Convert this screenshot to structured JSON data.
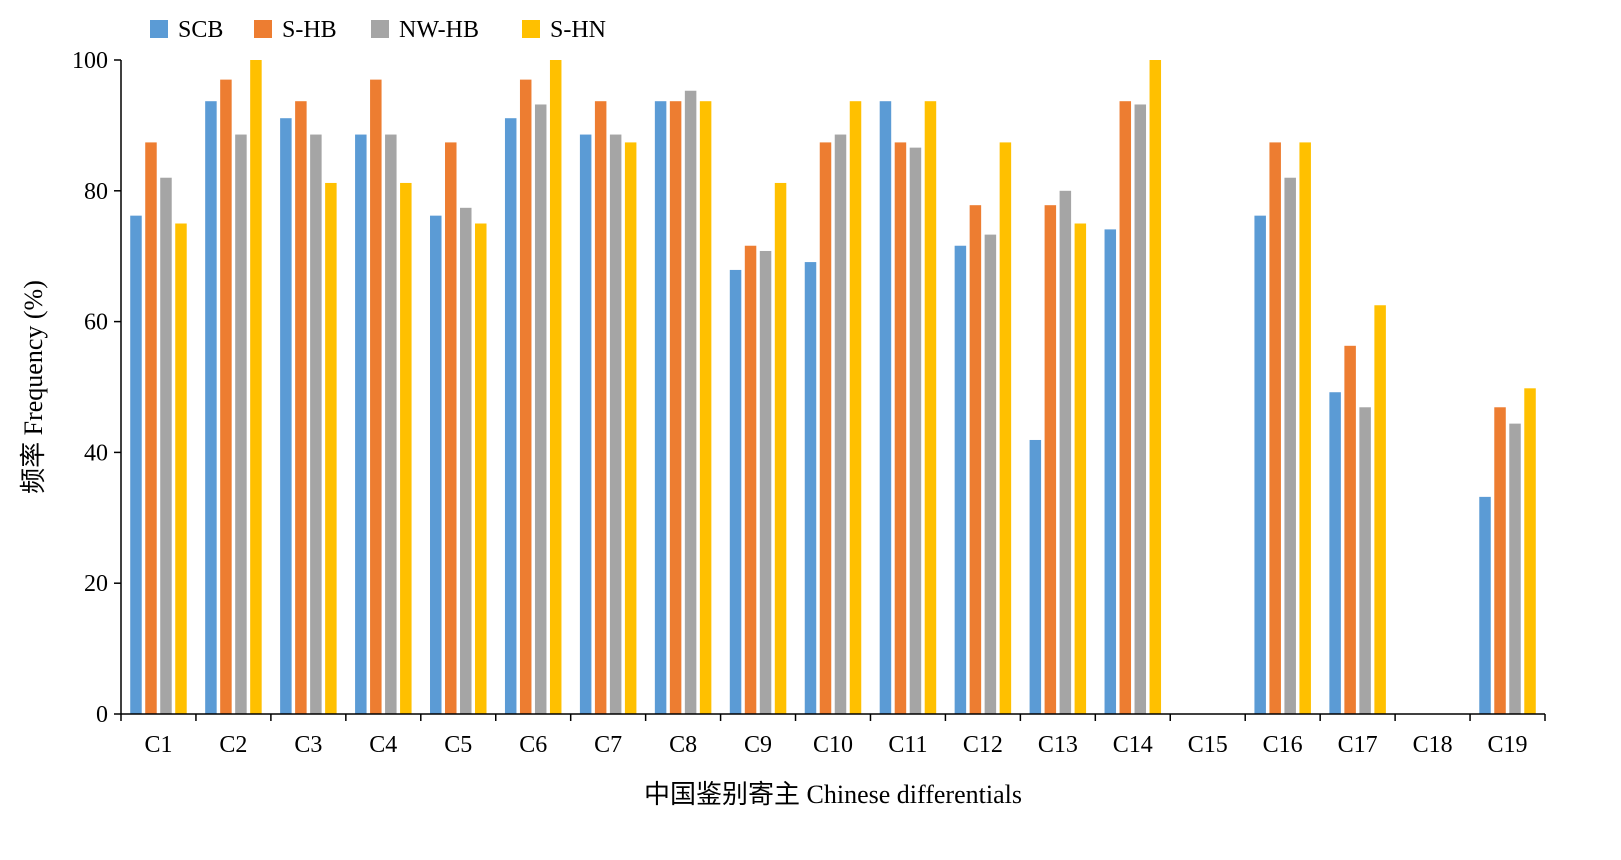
{
  "chart_data": {
    "type": "bar",
    "title": "",
    "xlabel": "中国鉴别寄主 Chinese differentials",
    "ylabel": "频率 Frequency (%)",
    "ylim": [
      0,
      100
    ],
    "yticks": [
      "0",
      "20",
      "40",
      "60",
      "80",
      "100"
    ],
    "grid": false,
    "legend_position": "top-left",
    "categories": [
      "C1",
      "C2",
      "C3",
      "C4",
      "C5",
      "C6",
      "C7",
      "C8",
      "C9",
      "C10",
      "C11",
      "C12",
      "C13",
      "C14",
      "C15",
      "C16",
      "C17",
      "C18",
      "C19"
    ],
    "series": [
      {
        "name": "SCB",
        "color": "#5B9BD5",
        "values": [
          76.2,
          93.7,
          91.1,
          88.6,
          76.2,
          91.1,
          88.6,
          93.7,
          67.9,
          69.1,
          93.7,
          71.6,
          41.9,
          74.1,
          0,
          76.2,
          49.2,
          0,
          33.2
        ]
      },
      {
        "name": "S-HB",
        "color": "#ED7D31",
        "values": [
          87.4,
          97.0,
          93.7,
          97.0,
          87.4,
          97.0,
          93.7,
          93.7,
          71.6,
          87.4,
          87.4,
          77.8,
          77.8,
          93.7,
          0,
          87.4,
          56.3,
          0,
          46.9
        ]
      },
      {
        "name": "NW-HB",
        "color": "#A5A5A5",
        "values": [
          82.0,
          88.6,
          88.6,
          88.6,
          77.4,
          93.2,
          88.6,
          95.3,
          70.8,
          88.6,
          86.6,
          73.3,
          80.0,
          93.2,
          0,
          82.0,
          46.9,
          0,
          44.4
        ]
      },
      {
        "name": "S-HN",
        "color": "#FFC000",
        "values": [
          75.0,
          100,
          81.2,
          81.2,
          75.0,
          100,
          87.4,
          93.7,
          81.2,
          93.7,
          93.7,
          87.4,
          75.0,
          100,
          0,
          87.4,
          62.5,
          0,
          49.8
        ]
      }
    ]
  }
}
